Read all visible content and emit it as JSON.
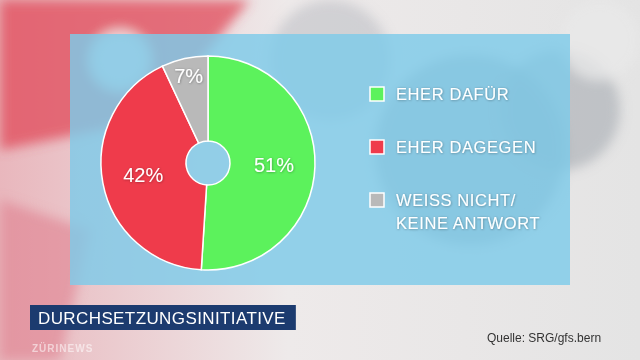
{
  "chart_data": {
    "type": "pie",
    "title": "DURCHSETZUNGSINITIATIVE",
    "categories": [
      "EHER DAFÜR",
      "EHER DAGEGEN",
      "WEISS NICHT/\nKEINE ANTWORT"
    ],
    "values": [
      51,
      42,
      7
    ],
    "value_labels": [
      "51%",
      "42%",
      "7%"
    ],
    "colors": [
      "#5cf25c",
      "#ef3b4b",
      "#b9b9b9"
    ],
    "data_labels": true,
    "legend": "right",
    "annotations": [
      "Quelle: SRG/gfs.bern",
      "ZÜRINEWS"
    ]
  }
}
